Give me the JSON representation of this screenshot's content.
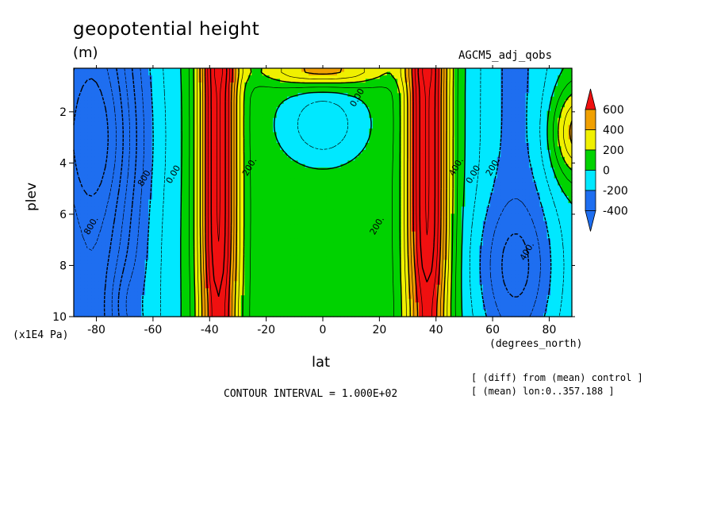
{
  "chart_data": {
    "type": "heatmap",
    "title": "geopotential height",
    "units": "(m)",
    "model": "AGCM5_adj_qobs",
    "xlabel": "lat",
    "xunits": "(degrees_north)",
    "ylabel": "plev",
    "yunits": "(x1E4 Pa)",
    "contour_interval": "CONTOUR INTERVAL = 1.000E+02",
    "notes": [
      "[ (diff) from (mean) control ]",
      "[ (mean) lon:0..357.188 ]"
    ],
    "xlim": [
      -88,
      88
    ],
    "ylim": [
      0.3,
      10
    ],
    "y_inverted": true,
    "x_ticks": [
      -80,
      -60,
      -40,
      -20,
      0,
      20,
      40,
      60,
      80
    ],
    "y_ticks": [
      2,
      4,
      6,
      8,
      10
    ],
    "colorbar": {
      "levels": [
        -400,
        -200,
        0,
        200,
        400,
        600
      ],
      "colors": [
        "#1e6ef0",
        "#00c8f0",
        "#00d200",
        "#f0f000",
        "#f0a000",
        "#f01010"
      ],
      "bins": [
        {
          "lo": null,
          "hi": -400,
          "color": "#1e6ef0"
        },
        {
          "lo": -400,
          "hi": -200,
          "color": "#1e6ef0"
        },
        {
          "lo": -200,
          "hi": 0,
          "color": "#00e8ff"
        },
        {
          "lo": 0,
          "hi": 200,
          "color": "#00d200"
        },
        {
          "lo": 200,
          "hi": 400,
          "color": "#f0f000"
        },
        {
          "lo": 400,
          "hi": 600,
          "color": "#f0a000"
        },
        {
          "lo": 600,
          "hi": null,
          "color": "#f01010"
        }
      ]
    },
    "contour_labels": [
      {
        "text": "800.",
        "x": -81,
        "y": 6.5
      },
      {
        "text": "800.",
        "x": -62,
        "y": 4.6
      },
      {
        "text": "0.00",
        "x": -52,
        "y": 4.5
      },
      {
        "text": "200.",
        "x": -25,
        "y": 4.2
      },
      {
        "text": "200.",
        "x": 20,
        "y": 6.5
      },
      {
        "text": "0.00",
        "x": 13,
        "y": 1.5
      },
      {
        "text": "400.",
        "x": 48,
        "y": 4.2
      },
      {
        "text": "0.00",
        "x": 54,
        "y": 4.5
      },
      {
        "text": "200.",
        "x": 61,
        "y": 4.2
      },
      {
        "text": "400.",
        "x": 73,
        "y": 7.5
      }
    ]
  }
}
